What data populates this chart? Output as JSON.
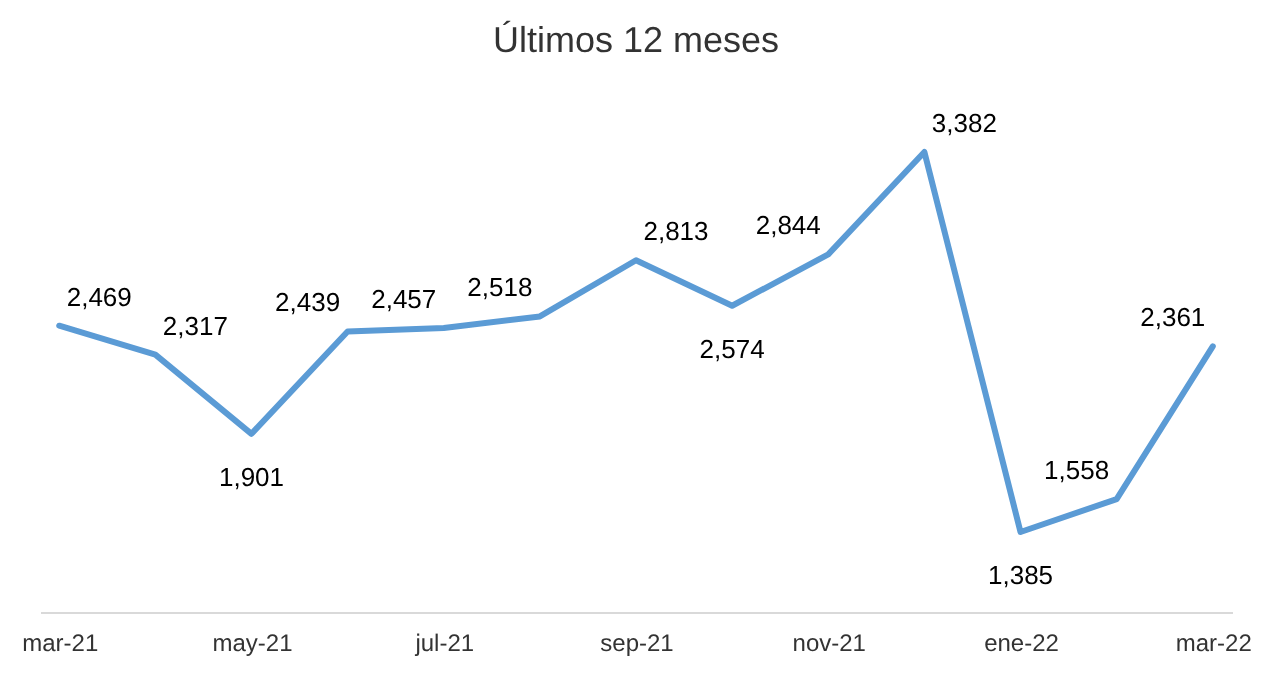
{
  "chart_data": {
    "type": "line",
    "title": "Últimos 12 meses",
    "categories": [
      "mar-21",
      null,
      "may-21",
      null,
      "jul-21",
      null,
      "sep-21",
      null,
      "nov-21",
      null,
      "ene-22",
      null,
      "mar-22"
    ],
    "series": [
      {
        "color": "#5b9bd5",
        "values": [
          2469,
          2317,
          1901,
          2439,
          2457,
          2518,
          2813,
          2574,
          2844,
          3382,
          1385,
          1558,
          2361
        ],
        "value_labels": [
          "2,469",
          "2,317",
          "1,901",
          "2,439",
          "2,457",
          "2,518",
          "2,813",
          "2,574",
          "2,844",
          "3,382",
          "1,385",
          "1,558",
          "2,361"
        ]
      }
    ],
    "grid": false,
    "marker": "none",
    "line_style": "solid"
  }
}
